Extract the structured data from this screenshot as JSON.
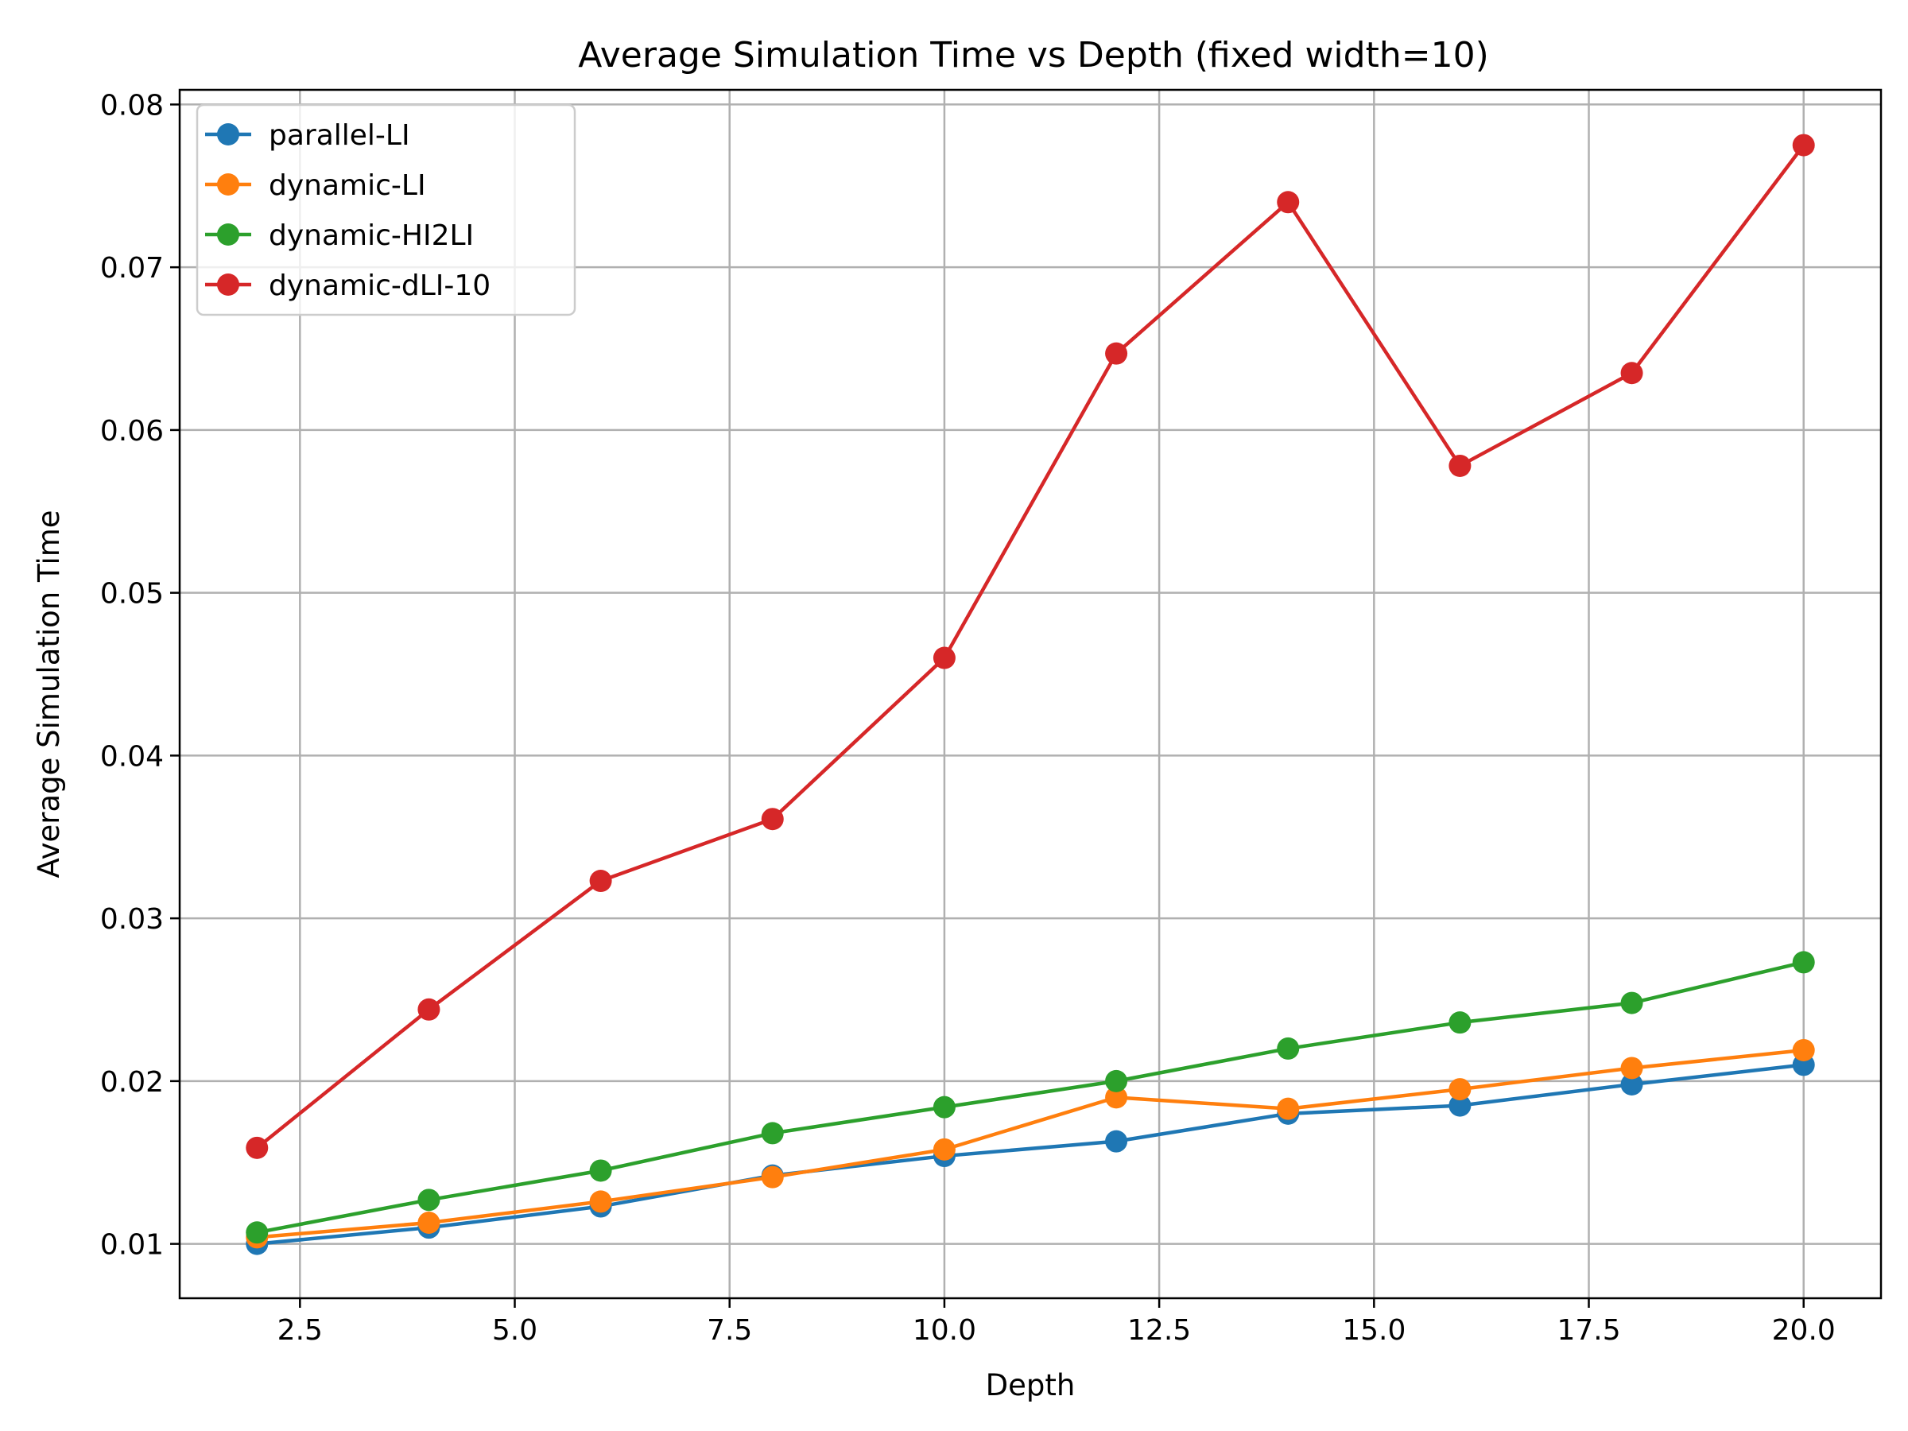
{
  "chart_data": {
    "type": "line",
    "title": "Average Simulation Time vs Depth (fixed width=10)",
    "xlabel": "Depth",
    "ylabel": "Average Simulation Time",
    "x": [
      2,
      4,
      6,
      8,
      10,
      12,
      14,
      16,
      18,
      20
    ],
    "xlim": [
      1.1,
      20.9
    ],
    "ylim": [
      0.00666,
      0.0809
    ],
    "xticks": [
      2.5,
      5.0,
      7.5,
      10.0,
      12.5,
      15.0,
      17.5,
      20.0
    ],
    "xtick_labels": [
      "2.5",
      "5.0",
      "7.5",
      "10.0",
      "12.5",
      "15.0",
      "17.5",
      "20.0"
    ],
    "yticks": [
      0.01,
      0.02,
      0.03,
      0.04,
      0.05,
      0.06,
      0.07,
      0.08
    ],
    "ytick_labels": [
      "0.01",
      "0.02",
      "0.03",
      "0.04",
      "0.05",
      "0.06",
      "0.07",
      "0.08"
    ],
    "grid": true,
    "legend_position": "top-left",
    "series": [
      {
        "name": "parallel-LI",
        "color": "#1f77b4",
        "values": [
          0.01,
          0.011,
          0.0123,
          0.0142,
          0.0154,
          0.0163,
          0.018,
          0.0185,
          0.0198,
          0.021
        ]
      },
      {
        "name": "dynamic-LI",
        "color": "#ff7f0e",
        "values": [
          0.0104,
          0.0113,
          0.0126,
          0.0141,
          0.0158,
          0.019,
          0.0183,
          0.0195,
          0.0208,
          0.0219
        ]
      },
      {
        "name": "dynamic-HI2LI",
        "color": "#2ca02c",
        "values": [
          0.0107,
          0.0127,
          0.0145,
          0.0168,
          0.0184,
          0.02,
          0.022,
          0.0236,
          0.0248,
          0.0273
        ]
      },
      {
        "name": "dynamic-dLI-10",
        "color": "#d62728",
        "values": [
          0.0159,
          0.0244,
          0.0323,
          0.0361,
          0.046,
          0.0647,
          0.074,
          0.0578,
          0.0635,
          0.0775
        ]
      }
    ]
  }
}
